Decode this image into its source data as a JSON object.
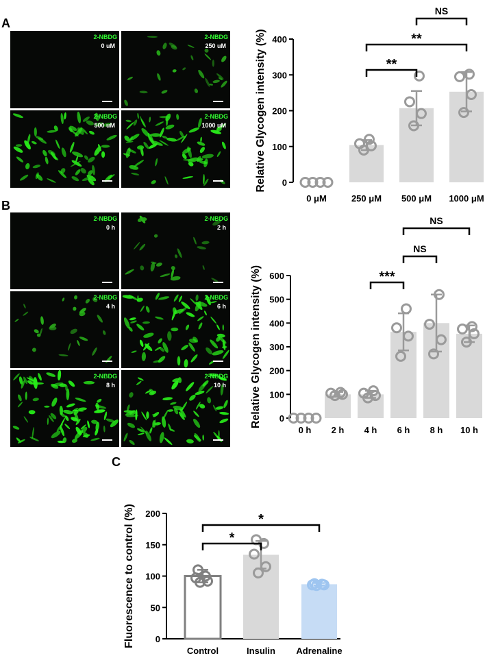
{
  "panels": {
    "a": "A",
    "b": "B",
    "c": "C"
  },
  "micrographs": {
    "a": [
      {
        "stain": "2-NBDG",
        "label": "0 uM",
        "intensity": 0.0
      },
      {
        "stain": "2-NBDG",
        "label": "250 uM",
        "intensity": 0.35
      },
      {
        "stain": "2-NBDG",
        "label": "500 uM",
        "intensity": 0.85
      },
      {
        "stain": "2-NBDG",
        "label": "1000 uM",
        "intensity": 0.9
      }
    ],
    "b": [
      {
        "stain": "2-NBDG",
        "label": "0 h",
        "intensity": 0.0
      },
      {
        "stain": "2-NBDG",
        "label": "2 h",
        "intensity": 0.3
      },
      {
        "stain": "2-NBDG",
        "label": "4 h",
        "intensity": 0.35
      },
      {
        "stain": "2-NBDG",
        "label": "6 h",
        "intensity": 0.9
      },
      {
        "stain": "2-NBDG",
        "label": "8 h",
        "intensity": 1.0
      },
      {
        "stain": "2-NBDG",
        "label": "10 h",
        "intensity": 0.95
      }
    ]
  },
  "chart_data": [
    {
      "id": "A",
      "type": "bar",
      "ylabel": "Relative Glycogen intensity (%)",
      "xlabel": "",
      "ylim": [
        0,
        400
      ],
      "yticks": [
        0,
        100,
        200,
        300,
        400
      ],
      "categories": [
        "0 μM",
        "250 μM",
        "500 μM",
        "1000 μM"
      ],
      "values": [
        0,
        104,
        207,
        253
      ],
      "errors": [
        0,
        14,
        48,
        55
      ],
      "points": [
        [
          0,
          0,
          0,
          0
        ],
        [
          90,
          102,
          108,
          120
        ],
        [
          158,
          192,
          225,
          297
        ],
        [
          195,
          245,
          295,
          302
        ]
      ],
      "bar_color": "#d9d9d9",
      "point_color": "#9a9a9a",
      "significance": [
        {
          "from": 1,
          "to": 2,
          "label": "**"
        },
        {
          "from": 1,
          "to": 3,
          "label": "**"
        },
        {
          "from": 2,
          "to": 3,
          "label": "NS"
        }
      ]
    },
    {
      "id": "B",
      "type": "bar",
      "ylabel": "Relative Glycogen intensity (%)",
      "xlabel": "",
      "ylim": [
        0,
        600
      ],
      "yticks": [
        0,
        100,
        200,
        300,
        400,
        500,
        600
      ],
      "categories": [
        "0 h",
        "2 h",
        "4 h",
        "6 h",
        "8 h",
        "10 h"
      ],
      "values": [
        0,
        100,
        100,
        363,
        400,
        355
      ],
      "errors": [
        0,
        10,
        15,
        78,
        120,
        35
      ],
      "points": [
        [
          0,
          0,
          0,
          0
        ],
        [
          95,
          100,
          105,
          108
        ],
        [
          85,
          95,
          105,
          115
        ],
        [
          260,
          345,
          380,
          460
        ],
        [
          270,
          330,
          395,
          520
        ],
        [
          320,
          355,
          375,
          385
        ]
      ],
      "bar_color": "#d9d9d9",
      "point_color": "#9a9a9a",
      "significance": [
        {
          "from": 2,
          "to": 3,
          "label": "***"
        },
        {
          "from": 3,
          "to": 4,
          "label": "NS"
        },
        {
          "from": 3,
          "to": 5,
          "label": "NS"
        }
      ]
    },
    {
      "id": "C",
      "type": "bar",
      "ylabel": "Fluorescence to control (%)",
      "xlabel": "",
      "ylim": [
        0,
        200
      ],
      "yticks": [
        0,
        50,
        100,
        150,
        200
      ],
      "categories": [
        "Control",
        "Insulin",
        "Adrenaline"
      ],
      "values": [
        100,
        134,
        87
      ],
      "errors": [
        10,
        22,
        2
      ],
      "points": [
        [
          90,
          92,
          97,
          100,
          110
        ],
        [
          105,
          115,
          135,
          152,
          158
        ],
        [
          85,
          86,
          86,
          87,
          88
        ]
      ],
      "bar_fills": [
        "#ffffff",
        "#d9d9d9",
        "#c6dcf5"
      ],
      "bar_strokes": [
        "#808080",
        "#d9d9d9",
        "#c6dcf5"
      ],
      "point_colors": [
        "#808080",
        "#9a9a9a",
        "#9ec5f0"
      ],
      "significance": [
        {
          "from": 0,
          "to": 1,
          "label": "*"
        },
        {
          "from": 0,
          "to": 2,
          "label": "*"
        }
      ]
    }
  ]
}
